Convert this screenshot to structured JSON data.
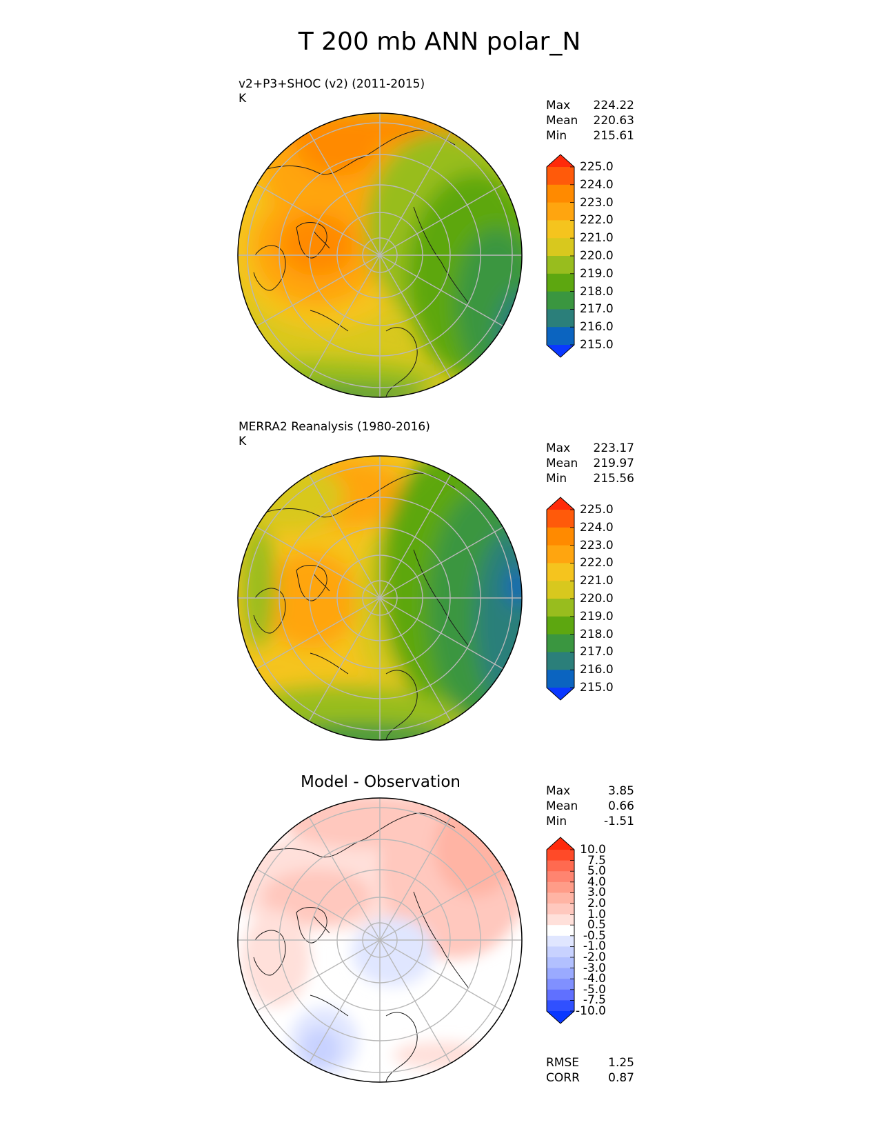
{
  "figure_title": "T 200 mb ANN polar_N",
  "panels": [
    {
      "label": "v2+P3+SHOC (v2) (2011-2015)",
      "units": "K",
      "stats": {
        "max_label": "Max",
        "max": "224.22",
        "mean_label": "Mean",
        "mean": "220.63",
        "min_label": "Min",
        "min": "215.61"
      }
    },
    {
      "label": "MERRA2 Reanalysis (1980-2016)",
      "units": "K",
      "stats": {
        "max_label": "Max",
        "max": "223.17",
        "mean_label": "Mean",
        "mean": "219.97",
        "min_label": "Min",
        "min": "215.56"
      }
    },
    {
      "label": "Model - Observation",
      "stats": {
        "max_label": "Max",
        "max": "3.85",
        "mean_label": "Mean",
        "mean": "0.66",
        "min_label": "Min",
        "min": "-1.51"
      },
      "rmse_label": "RMSE",
      "rmse": "1.25",
      "corr_label": "CORR",
      "corr": "0.87"
    }
  ],
  "colorbar_abs": {
    "levels": [
      "225.0",
      "224.0",
      "223.0",
      "222.0",
      "221.0",
      "220.0",
      "219.0",
      "218.0",
      "217.0",
      "216.0",
      "215.0"
    ],
    "colors": [
      "#ff2a0a",
      "#ff5a0a",
      "#ff8a00",
      "#ffa50f",
      "#f5c41e",
      "#d8c81e",
      "#98bd1e",
      "#5da710",
      "#3a9640",
      "#2b7f7a",
      "#0b64c0",
      "#0a38ff"
    ]
  },
  "colorbar_diff": {
    "levels": [
      "10.0",
      "7.5",
      "5.0",
      "4.0",
      "3.0",
      "2.0",
      "1.0",
      "0.5",
      "-0.5",
      "-1.0",
      "-2.0",
      "-3.0",
      "-4.0",
      "-5.0",
      "-7.5",
      "-10.0"
    ],
    "colors": [
      "#ff2a0a",
      "#ff4a28",
      "#ff6a50",
      "#ff8470",
      "#ff9c88",
      "#ffb4a4",
      "#ffc8be",
      "#ffe0da",
      "#ffffff",
      "#e0e6ff",
      "#c8d2ff",
      "#b2c0ff",
      "#9aaaff",
      "#8090ff",
      "#6070ff",
      "#3050ff",
      "#0a38ff"
    ]
  },
  "chart_data": [
    {
      "type": "heatmap",
      "projection": "polar_N",
      "title": "v2+P3+SHOC (v2) (2011-2015)",
      "units": "K",
      "max": 224.22,
      "mean": 220.63,
      "min": 215.61,
      "contour_levels": [
        215.0,
        216.0,
        217.0,
        218.0,
        219.0,
        220.0,
        221.0,
        222.0,
        223.0,
        224.0,
        225.0
      ]
    },
    {
      "type": "heatmap",
      "projection": "polar_N",
      "title": "MERRA2 Reanalysis (1980-2016)",
      "units": "K",
      "max": 223.17,
      "mean": 219.97,
      "min": 215.56,
      "contour_levels": [
        215.0,
        216.0,
        217.0,
        218.0,
        219.0,
        220.0,
        221.0,
        222.0,
        223.0,
        224.0,
        225.0
      ]
    },
    {
      "type": "heatmap",
      "projection": "polar_N",
      "title": "Model - Observation",
      "max": 3.85,
      "mean": 0.66,
      "min": -1.51,
      "rmse": 1.25,
      "corr": 0.87,
      "contour_levels": [
        -10.0,
        -7.5,
        -5.0,
        -4.0,
        -3.0,
        -2.0,
        -1.0,
        -0.5,
        0.5,
        1.0,
        2.0,
        3.0,
        4.0,
        5.0,
        7.5,
        10.0
      ]
    }
  ]
}
